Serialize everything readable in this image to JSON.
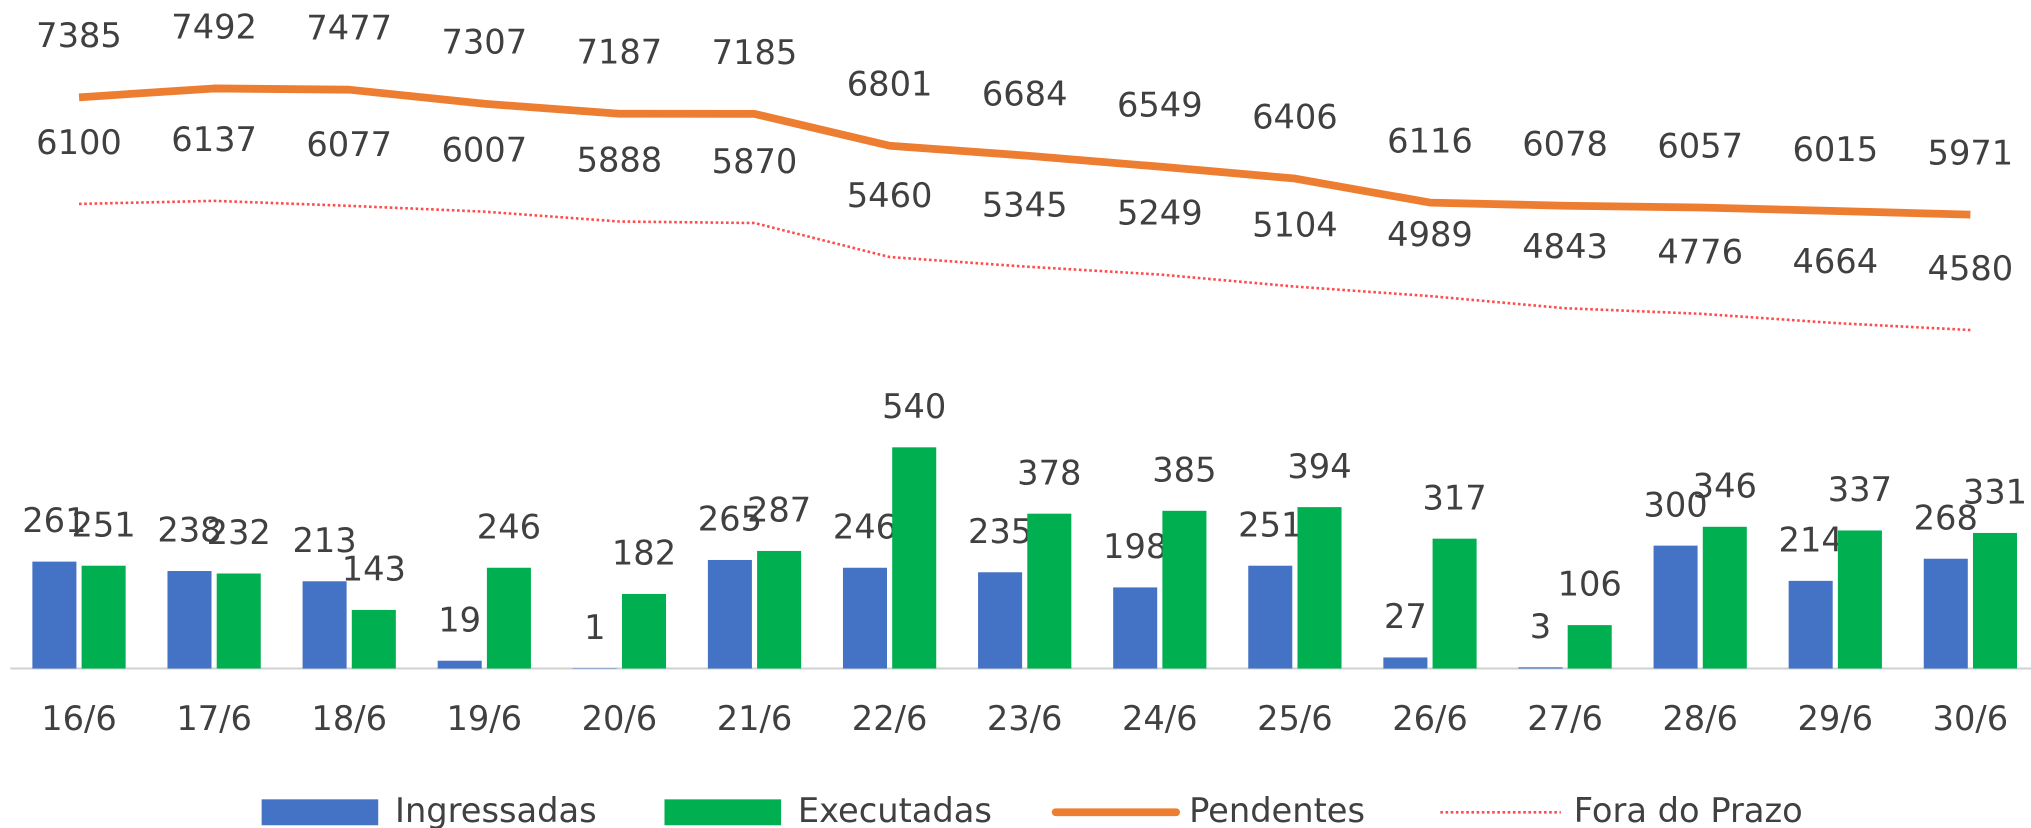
{
  "chart_data": {
    "type": "bar-line",
    "categories": [
      "16/6",
      "17/6",
      "18/6",
      "19/6",
      "20/6",
      "21/6",
      "22/6",
      "23/6",
      "24/6",
      "25/6",
      "26/6",
      "27/6",
      "28/6",
      "29/6",
      "30/6"
    ],
    "series": [
      {
        "name": "Ingressadas",
        "type": "bar",
        "color": "#4472c4",
        "values": [
          261,
          238,
          213,
          19,
          1,
          265,
          246,
          235,
          198,
          251,
          27,
          3,
          300,
          214,
          268
        ]
      },
      {
        "name": "Executadas",
        "type": "bar",
        "color": "#00b050",
        "values": [
          251,
          232,
          143,
          246,
          182,
          287,
          540,
          378,
          385,
          394,
          317,
          106,
          346,
          337,
          331
        ]
      },
      {
        "name": "Pendentes",
        "type": "line",
        "axis": "y2",
        "color": "#ed7d31",
        "values": [
          7385,
          7492,
          7477,
          7307,
          7187,
          7185,
          6801,
          6684,
          6549,
          6406,
          6116,
          6078,
          6057,
          6015,
          5971
        ]
      },
      {
        "name": "Fora do Prazo",
        "type": "line",
        "axis": "y2",
        "dashed": true,
        "color": "#ff4b4b",
        "values": [
          6100,
          6137,
          6077,
          6007,
          5888,
          5870,
          5460,
          5345,
          5249,
          5104,
          4989,
          4843,
          4776,
          4664,
          4580
        ]
      }
    ],
    "ylim": [
      0,
      1600
    ],
    "y2lim": [
      500,
      8400
    ],
    "legend": "bottom"
  }
}
